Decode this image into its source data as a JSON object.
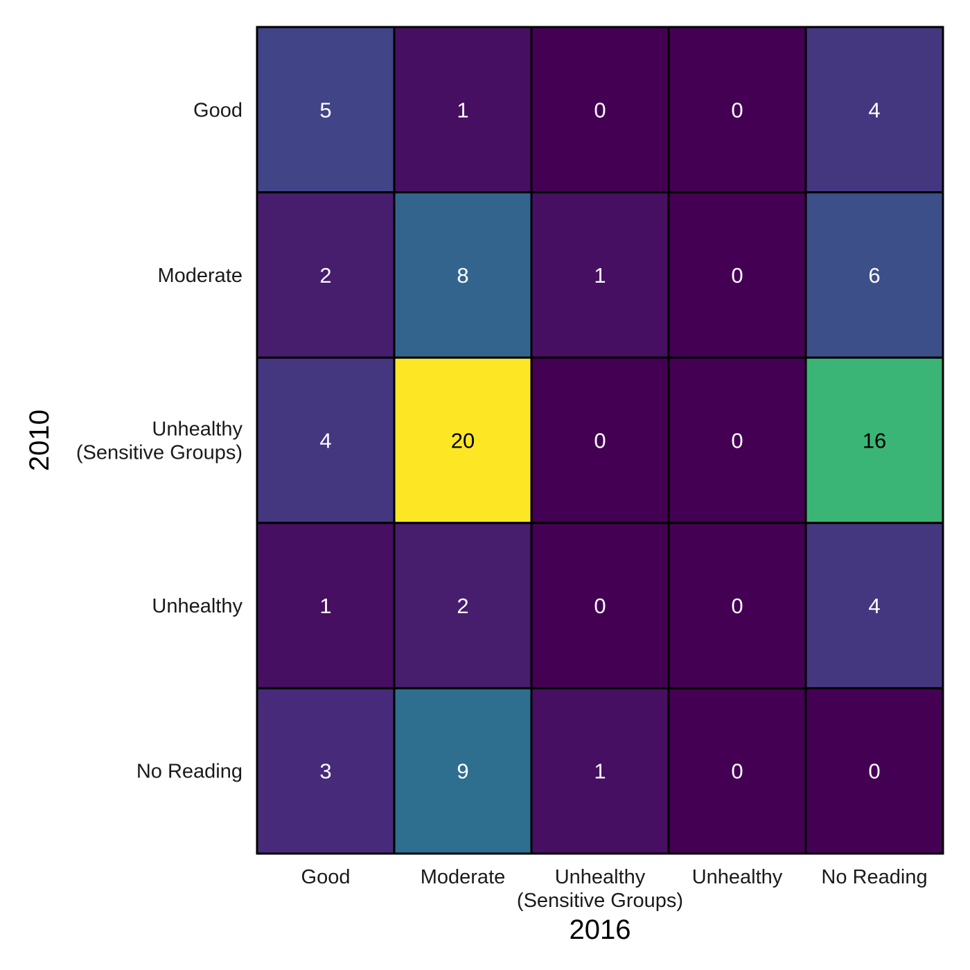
{
  "chart_data": {
    "type": "heatmap",
    "xlabel": "2016",
    "ylabel": "2010",
    "x_categories": [
      [
        "Good"
      ],
      [
        "Moderate"
      ],
      [
        "Unhealthy",
        "(Sensitive Groups)"
      ],
      [
        "Unhealthy"
      ],
      [
        "No Reading"
      ]
    ],
    "y_categories": [
      [
        "Good"
      ],
      [
        "Moderate"
      ],
      [
        "Unhealthy",
        "(Sensitive Groups)"
      ],
      [
        "Unhealthy"
      ],
      [
        "No Reading"
      ]
    ],
    "values": [
      [
        5,
        1,
        0,
        0,
        4
      ],
      [
        2,
        8,
        1,
        0,
        6
      ],
      [
        4,
        20,
        0,
        0,
        16
      ],
      [
        1,
        2,
        0,
        0,
        4
      ],
      [
        3,
        9,
        1,
        0,
        0
      ]
    ],
    "value_range": [
      0,
      20
    ],
    "colormap": "viridis",
    "legend": "none",
    "grid": false
  }
}
